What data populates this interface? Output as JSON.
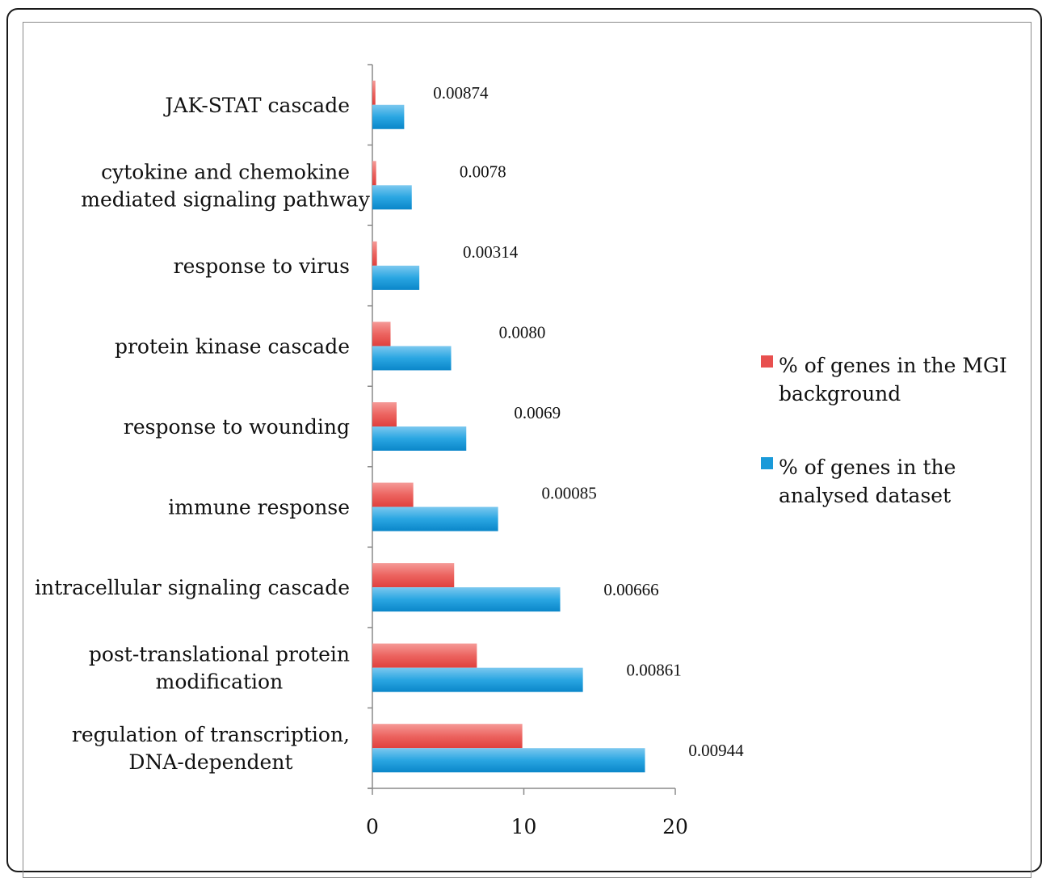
{
  "chart_data": {
    "type": "bar",
    "orientation": "horizontal",
    "categories": [
      [
        "JAK-STAT cascade"
      ],
      [
        "cytokine and chemokine",
        "mediated signaling pathway"
      ],
      [
        "response to virus"
      ],
      [
        "protein kinase cascade"
      ],
      [
        "response to wounding"
      ],
      [
        "immune response"
      ],
      [
        "intracellular signaling cascade"
      ],
      [
        "post-translational protein",
        "modification"
      ],
      [
        "regulation of transcription,",
        "DNA-dependent"
      ]
    ],
    "series": [
      {
        "name": "% of genes in the MGI background",
        "color": "#e8504f",
        "values": [
          0.2,
          0.25,
          0.3,
          1.2,
          1.6,
          2.7,
          5.4,
          6.9,
          9.9
        ]
      },
      {
        "name": "% of genes in the analysed dataset",
        "color": "#1a9ad9",
        "values": [
          2.1,
          2.6,
          3.1,
          5.2,
          6.2,
          8.3,
          12.4,
          13.9,
          18.0
        ]
      }
    ],
    "annotations": [
      "0.00874",
      "0.0078",
      "0.00314",
      "0.0080",
      "0.0069",
      "0.00085",
      "0.00666",
      "0.00861",
      "0.00944"
    ],
    "xlim": [
      0,
      20
    ],
    "xticks": [
      "0",
      "10",
      "20"
    ],
    "legend_position": "right",
    "legend": [
      [
        "% of genes in the MGI",
        "background"
      ],
      [
        "% of genes in the",
        "analysed dataset"
      ]
    ],
    "title": "",
    "xlabel": "",
    "ylabel": ""
  }
}
